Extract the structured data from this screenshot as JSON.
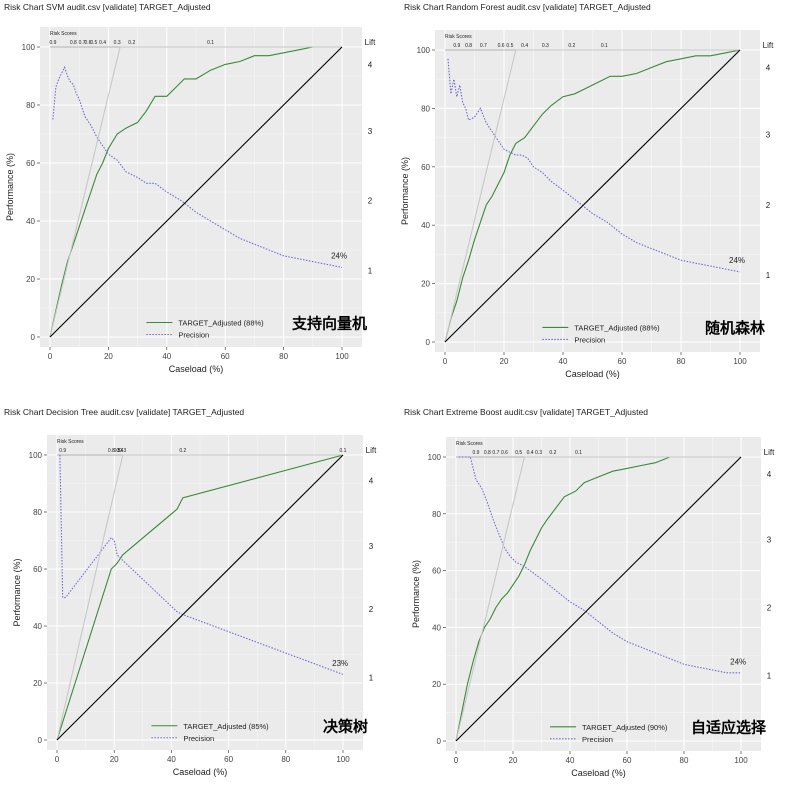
{
  "chart_data": [
    {
      "type": "line",
      "title": "Risk Chart SVM audit.csv [validate] TARGET_Adjusted",
      "xlabel": "Caseload (%)",
      "ylabel": "Performance (%)",
      "xlim": [
        0,
        100
      ],
      "ylim": [
        0,
        100
      ],
      "x_ticks": [
        "0",
        "20",
        "40",
        "60",
        "80",
        "100"
      ],
      "y_ticks": [
        "0",
        "20",
        "40",
        "60",
        "80",
        "100"
      ],
      "risk_scores_label": "Risk Scores",
      "risk_scores": [
        {
          "label": "0.9",
          "x": 1
        },
        {
          "label": "0.8",
          "x": 8
        },
        {
          "label": "0.7",
          "x": 11
        },
        {
          "label": "0.6",
          "x": 13
        },
        {
          "label": "0.5",
          "x": 15
        },
        {
          "label": "0.4",
          "x": 18
        },
        {
          "label": "0.3",
          "x": 23
        },
        {
          "label": "0.2",
          "x": 28
        },
        {
          "label": "0.1",
          "x": 55
        }
      ],
      "lift_label": "Lift",
      "lift_ticks": [
        {
          "label": "4",
          "y": 94
        },
        {
          "label": "3",
          "y": 71
        },
        {
          "label": "2",
          "y": 47
        },
        {
          "label": "1",
          "y": 23
        }
      ],
      "series": [
        {
          "name": "TARGET_Adjusted (88%)",
          "color": "#3a8a3a",
          "style": "solid",
          "x": [
            0,
            2,
            4,
            6,
            8,
            10,
            12,
            14,
            16,
            18,
            20,
            23,
            26,
            30,
            33,
            36,
            40,
            43,
            46,
            50,
            55,
            60,
            65,
            70,
            75,
            80,
            85,
            90,
            95,
            100
          ],
          "y": [
            0,
            9,
            18,
            26,
            32,
            38,
            44,
            50,
            56,
            60,
            65,
            70,
            72,
            74,
            78,
            83,
            83,
            86,
            89,
            89,
            92,
            94,
            95,
            97,
            97,
            98,
            99,
            100,
            100,
            100
          ]
        },
        {
          "name": "Precision",
          "color": "#6b6bd6",
          "style": "dotted",
          "x": [
            1,
            2,
            3,
            4,
            5,
            6,
            7,
            8,
            9,
            10,
            12,
            14,
            16,
            18,
            20,
            23,
            26,
            30,
            33,
            36,
            40,
            45,
            50,
            55,
            60,
            65,
            70,
            75,
            80,
            85,
            90,
            95,
            100
          ],
          "y": [
            75,
            86,
            89,
            91,
            93,
            90,
            88,
            87,
            84,
            82,
            76,
            73,
            69,
            66,
            63,
            61,
            57,
            55,
            53,
            53,
            50,
            47,
            43,
            40,
            37,
            34,
            32,
            30,
            28,
            27,
            26,
            25,
            24
          ]
        },
        {
          "name": "Optimal",
          "color": "#c8c8c8",
          "style": "solid",
          "x": [
            0,
            24,
            100
          ],
          "y": [
            0,
            100,
            100
          ]
        },
        {
          "name": "Baseline",
          "color": "#000000",
          "style": "solid",
          "x": [
            0,
            100
          ],
          "y": [
            0,
            100
          ]
        }
      ],
      "end_label": {
        "text": "24%",
        "x": 99,
        "y": 27
      },
      "legend": [
        "TARGET_Adjusted (88%)",
        "Precision"
      ],
      "chinese_label": "支持向量机"
    },
    {
      "type": "line",
      "title": "Risk Chart Random Forest audit.csv [validate] TARGET_Adjusted",
      "xlabel": "Caseload (%)",
      "ylabel": "Performance (%)",
      "xlim": [
        0,
        100
      ],
      "ylim": [
        0,
        100
      ],
      "x_ticks": [
        "0",
        "20",
        "40",
        "60",
        "80",
        "100"
      ],
      "y_ticks": [
        "0",
        "20",
        "40",
        "60",
        "80",
        "100"
      ],
      "risk_scores_label": "Risk Scores",
      "risk_scores": [
        {
          "label": "0.9",
          "x": 4
        },
        {
          "label": "0.8",
          "x": 8
        },
        {
          "label": "0.7",
          "x": 13
        },
        {
          "label": "0.6",
          "x": 19
        },
        {
          "label": "0.5",
          "x": 22
        },
        {
          "label": "0.4",
          "x": 27
        },
        {
          "label": "0.3",
          "x": 34
        },
        {
          "label": "0.2",
          "x": 43
        },
        {
          "label": "0.1",
          "x": 54
        }
      ],
      "lift_label": "Lift",
      "lift_ticks": [
        {
          "label": "4",
          "y": 94
        },
        {
          "label": "3",
          "y": 71
        },
        {
          "label": "2",
          "y": 47
        },
        {
          "label": "1",
          "y": 23
        }
      ],
      "series": [
        {
          "name": "TARGET_Adjusted (88%)",
          "color": "#3a8a3a",
          "style": "solid",
          "x": [
            0,
            2,
            4,
            6,
            8,
            10,
            12,
            14,
            16,
            18,
            20,
            22,
            24,
            27,
            30,
            33,
            36,
            40,
            44,
            48,
            52,
            56,
            60,
            65,
            70,
            75,
            80,
            85,
            90,
            95,
            100
          ],
          "y": [
            0,
            8,
            14,
            22,
            28,
            35,
            41,
            47,
            50,
            54,
            58,
            64,
            68,
            70,
            74,
            78,
            81,
            84,
            85,
            87,
            89,
            91,
            91,
            92,
            94,
            96,
            97,
            98,
            98,
            99,
            100
          ]
        },
        {
          "name": "Precision",
          "color": "#6b6bd6",
          "style": "dotted",
          "x": [
            1,
            2,
            3,
            4,
            5,
            6,
            7,
            8,
            10,
            12,
            14,
            16,
            18,
            20,
            22,
            24,
            26,
            28,
            30,
            33,
            36,
            40,
            45,
            50,
            55,
            60,
            65,
            70,
            75,
            80,
            85,
            90,
            95,
            100
          ],
          "y": [
            97,
            85,
            90,
            84,
            88,
            82,
            80,
            76,
            77,
            80,
            75,
            72,
            69,
            66,
            65,
            64,
            64,
            63,
            60,
            58,
            55,
            52,
            48,
            44,
            41,
            37,
            34,
            32,
            30,
            28,
            27,
            26,
            25,
            24
          ]
        },
        {
          "name": "Optimal",
          "color": "#c8c8c8",
          "style": "solid",
          "x": [
            0,
            24,
            100
          ],
          "y": [
            0,
            100,
            100
          ]
        },
        {
          "name": "Baseline",
          "color": "#000000",
          "style": "solid",
          "x": [
            0,
            100
          ],
          "y": [
            0,
            100
          ]
        }
      ],
      "end_label": {
        "text": "24%",
        "x": 99,
        "y": 27
      },
      "legend": [
        "TARGET_Adjusted (88%)",
        "Precision"
      ],
      "chinese_label": "随机森林"
    },
    {
      "type": "line",
      "title": "Risk Chart Decision Tree audit.csv [validate] TARGET_Adjusted",
      "xlabel": "Caseload (%)",
      "ylabel": "Performance (%)",
      "xlim": [
        0,
        100
      ],
      "ylim": [
        0,
        100
      ],
      "x_ticks": [
        "0",
        "20",
        "40",
        "60",
        "80",
        "100"
      ],
      "y_ticks": [
        "0",
        "20",
        "40",
        "60",
        "80",
        "100"
      ],
      "risk_scores_label": "Risk Scores",
      "risk_scores": [
        {
          "label": "0.9",
          "x": 2
        },
        {
          "label": "0.8",
          "x": 19
        },
        {
          "label": "0.5",
          "x": 21
        },
        {
          "label": "0.4",
          "x": 22
        },
        {
          "label": "0.3",
          "x": 23
        },
        {
          "label": "0.2",
          "x": 44
        },
        {
          "label": "0.1",
          "x": 100
        }
      ],
      "lift_label": "Lift",
      "lift_ticks": [
        {
          "label": "4",
          "y": 91
        },
        {
          "label": "3",
          "y": 68
        },
        {
          "label": "2",
          "y": 46
        },
        {
          "label": "1",
          "y": 22
        }
      ],
      "series": [
        {
          "name": "TARGET_Adjusted (85%)",
          "color": "#3a8a3a",
          "style": "solid",
          "x": [
            0,
            19,
            21,
            23,
            42,
            44,
            100
          ],
          "y": [
            0,
            60,
            62,
            65,
            81,
            85,
            100
          ]
        },
        {
          "name": "Precision",
          "color": "#6b6bd6",
          "style": "dotted",
          "x": [
            1,
            2,
            3,
            19,
            20,
            21,
            23,
            42,
            44,
            100
          ],
          "y": [
            100,
            50,
            50,
            71,
            70,
            65,
            63,
            45,
            44,
            23
          ]
        },
        {
          "name": "Optimal",
          "color": "#c8c8c8",
          "style": "solid",
          "x": [
            0,
            23,
            100
          ],
          "y": [
            0,
            100,
            100
          ]
        },
        {
          "name": "Baseline",
          "color": "#000000",
          "style": "solid",
          "x": [
            0,
            100
          ],
          "y": [
            0,
            100
          ]
        }
      ],
      "end_label": {
        "text": "23%",
        "x": 99,
        "y": 26
      },
      "legend": [
        "TARGET_Adjusted (85%)",
        "Precision"
      ],
      "chinese_label": "决策树"
    },
    {
      "type": "line",
      "title": "Risk Chart Extreme Boost audit.csv [validate] TARGET_Adjusted",
      "xlabel": "Caseload (%)",
      "ylabel": "Performance (%)",
      "xlim": [
        0,
        100
      ],
      "ylim": [
        0,
        100
      ],
      "x_ticks": [
        "0",
        "20",
        "40",
        "60",
        "80",
        "100"
      ],
      "y_ticks": [
        "0",
        "20",
        "40",
        "60",
        "80",
        "100"
      ],
      "risk_scores_label": "Risk Scores",
      "risk_scores": [
        {
          "label": "0.9",
          "x": 7
        },
        {
          "label": "0.8",
          "x": 11
        },
        {
          "label": "0.7",
          "x": 14
        },
        {
          "label": "0.6",
          "x": 17
        },
        {
          "label": "0.5",
          "x": 22
        },
        {
          "label": "0.4",
          "x": 26
        },
        {
          "label": "0.3",
          "x": 29
        },
        {
          "label": "0.2",
          "x": 34
        },
        {
          "label": "0.1",
          "x": 43
        }
      ],
      "lift_label": "Lift",
      "lift_ticks": [
        {
          "label": "4",
          "y": 94
        },
        {
          "label": "3",
          "y": 71
        },
        {
          "label": "2",
          "y": 47
        },
        {
          "label": "1",
          "y": 23
        }
      ],
      "series": [
        {
          "name": "TARGET_Adjusted (90%)",
          "color": "#3a8a3a",
          "style": "solid",
          "x": [
            0,
            2,
            4,
            6,
            8,
            10,
            12,
            14,
            16,
            18,
            20,
            22,
            24,
            26,
            28,
            30,
            32,
            35,
            38,
            42,
            45,
            50,
            55,
            60,
            65,
            70,
            75,
            80,
            90,
            100
          ],
          "y": [
            0,
            10,
            20,
            28,
            35,
            40,
            43,
            47,
            50,
            52,
            55,
            58,
            62,
            67,
            71,
            75,
            78,
            82,
            86,
            88,
            91,
            93,
            95,
            96,
            97,
            98,
            100,
            100,
            100,
            100
          ]
        },
        {
          "name": "Precision",
          "color": "#6b6bd6",
          "style": "dotted",
          "x": [
            1,
            3,
            5,
            7,
            9,
            11,
            13,
            15,
            17,
            19,
            21,
            23,
            26,
            30,
            35,
            40,
            45,
            50,
            55,
            60,
            65,
            70,
            75,
            80,
            85,
            90,
            95,
            100
          ],
          "y": [
            100,
            100,
            100,
            92,
            89,
            84,
            78,
            73,
            68,
            65,
            63,
            62,
            60,
            57,
            53,
            49,
            46,
            42,
            38,
            35,
            33,
            31,
            29,
            27,
            26,
            25,
            24,
            24
          ]
        },
        {
          "name": "Optimal",
          "color": "#c8c8c8",
          "style": "solid",
          "x": [
            0,
            24,
            100
          ],
          "y": [
            0,
            100,
            100
          ]
        },
        {
          "name": "Baseline",
          "color": "#000000",
          "style": "solid",
          "x": [
            0,
            100
          ],
          "y": [
            0,
            100
          ]
        }
      ],
      "end_label": {
        "text": "24%",
        "x": 99,
        "y": 27
      },
      "legend": [
        "TARGET_Adjusted (90%)",
        "Precision"
      ],
      "chinese_label": "自适应选择"
    }
  ]
}
